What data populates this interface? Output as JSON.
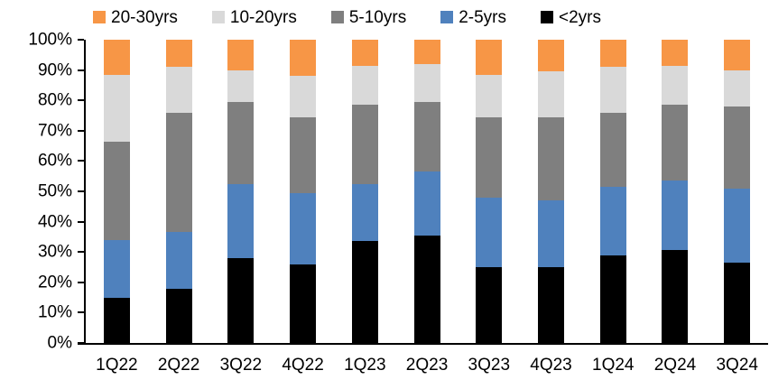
{
  "chart_data": {
    "type": "bar",
    "subtype": "stacked-100-percent",
    "title": "",
    "xlabel": "",
    "ylabel": "",
    "grid": false,
    "legend_position": "top",
    "y_axis": {
      "min": 0,
      "max": 100,
      "tick_step": 10,
      "tick_labels": [
        "0%",
        "10%",
        "20%",
        "30%",
        "40%",
        "50%",
        "60%",
        "70%",
        "80%",
        "90%",
        "100%"
      ]
    },
    "categories": [
      "1Q22",
      "2Q22",
      "3Q22",
      "4Q22",
      "1Q23",
      "2Q23",
      "3Q23",
      "4Q23",
      "1Q24",
      "2Q24",
      "3Q24"
    ],
    "series": [
      {
        "name": "<2yrs",
        "color": "#000000",
        "values": [
          15,
          18,
          28,
          26,
          33.5,
          35.5,
          25,
          25,
          29,
          30.5,
          26.5
        ]
      },
      {
        "name": "2-5yrs",
        "color": "#4F81BD",
        "values": [
          19,
          18.5,
          24.5,
          23.5,
          19,
          21,
          23,
          22,
          22.5,
          23,
          24.5
        ]
      },
      {
        "name": "5-10yrs",
        "color": "#7F7F7F",
        "values": [
          32.5,
          39.5,
          27,
          25,
          26,
          23,
          26.5,
          27.5,
          24.5,
          25,
          27
        ]
      },
      {
        "name": "10-20yrs",
        "color": "#D9D9D9",
        "values": [
          22,
          15,
          10.5,
          13.5,
          13,
          12.5,
          14,
          15,
          15,
          13,
          12
        ]
      },
      {
        "name": "20-30yrs",
        "color": "#F79646",
        "values": [
          11.5,
          9,
          10,
          12,
          8.5,
          8,
          11.5,
          10.5,
          9,
          8.5,
          10
        ]
      }
    ],
    "legend_order": [
      "20-30yrs",
      "10-20yrs",
      "5-10yrs",
      "2-5yrs",
      "<2yrs"
    ]
  },
  "colors": {
    "axis": "#000000",
    "text": "#000000",
    "background": "#ffffff"
  }
}
